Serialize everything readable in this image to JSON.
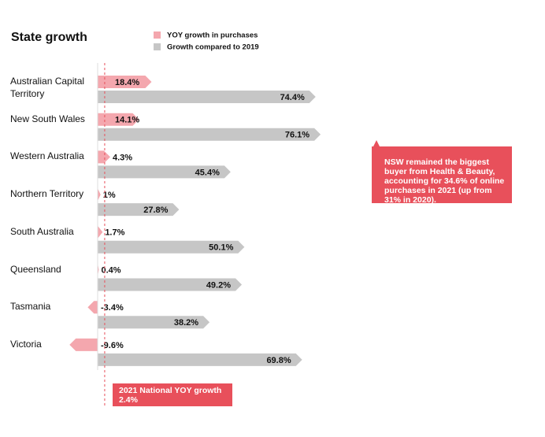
{
  "chart_data": {
    "type": "bar",
    "title": "State growth",
    "categories": [
      "Australian Capital Territory",
      "New South Wales",
      "Western Australia",
      "Northern Territory",
      "South Australia",
      "Queensland",
      "Tasmania",
      "Victoria"
    ],
    "series": [
      {
        "name": "YOY growth in purchases",
        "color": "#f4a7ae",
        "values": [
          18.4,
          14.1,
          4.3,
          1,
          1.7,
          0.4,
          -3.4,
          -9.6
        ],
        "value_labels": [
          "18.4%",
          "14.1%",
          "4.3%",
          "1%",
          "1.7%",
          "0.4%",
          "-3.4%",
          "-9.6%"
        ]
      },
      {
        "name": "Growth compared to 2019",
        "color": "#c6c6c6",
        "values": [
          74.4,
          76.1,
          45.4,
          27.8,
          50.1,
          49.2,
          38.2,
          69.8
        ],
        "value_labels": [
          "74.4%",
          "76.1%",
          "45.4%",
          "27.8%",
          "50.1%",
          "49.2%",
          "38.2%",
          "69.8%"
        ]
      }
    ],
    "annotation": "NSW remained the biggest buyer from Health & Beauty, accounting for 34.6% of online purchases in 2021 (up from 31% in 2020).",
    "national": {
      "label": "2021 National YOY growth",
      "value": 2.4,
      "value_label": "2.4%"
    },
    "highlight_color": "#e8505b"
  }
}
